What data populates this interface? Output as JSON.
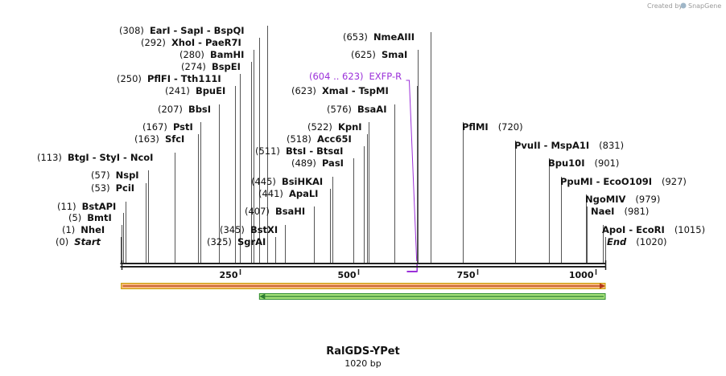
{
  "credit": {
    "text": "Created by",
    "brand": "SnapGene"
  },
  "sequence": {
    "name": "RalGDS-YPet",
    "length_label": "1020 bp",
    "length": 1020
  },
  "ruler": {
    "ticks": [
      250,
      500,
      750,
      1000
    ]
  },
  "primer_site": {
    "range": "(604 .. 623)",
    "name": "EXFP-R",
    "start": 604,
    "end": 623,
    "color": "#9b30d9"
  },
  "features": [
    {
      "name": "orf-top",
      "start": 1,
      "end": 1020,
      "direction": "forward",
      "fill": "#f7b87a",
      "stroke": "#c8a000",
      "arrow": "#b33a1a"
    },
    {
      "name": "orf-bottom",
      "start": 292,
      "end": 1020,
      "direction": "reverse",
      "fill": "#a6e27a",
      "stroke": "#2e8b2e",
      "arrow": "#2e7d32"
    }
  ],
  "sites": [
    {
      "pos": "(0)",
      "pos_n": 0,
      "label": "Start",
      "italic": true
    },
    {
      "pos": "(1)",
      "pos_n": 1,
      "label": "NheI"
    },
    {
      "pos": "(5)",
      "pos_n": 5,
      "label": "BmtI"
    },
    {
      "pos": "(11)",
      "pos_n": 11,
      "label": "BstAPI"
    },
    {
      "pos": "(53)",
      "pos_n": 53,
      "label": "PciI"
    },
    {
      "pos": "(57)",
      "pos_n": 57,
      "label": "NspI"
    },
    {
      "pos": "(113)",
      "pos_n": 113,
      "label": "BtgI  - StyI  - NcoI"
    },
    {
      "pos": "(163)",
      "pos_n": 163,
      "label": "SfcI"
    },
    {
      "pos": "(167)",
      "pos_n": 167,
      "label": "PstI"
    },
    {
      "pos": "(207)",
      "pos_n": 207,
      "label": "BbsI"
    },
    {
      "pos": "(241)",
      "pos_n": 241,
      "label": "BpuEI"
    },
    {
      "pos": "(250)",
      "pos_n": 250,
      "label": "PflFI  - Tth111I"
    },
    {
      "pos": "(274)",
      "pos_n": 274,
      "label": "BspEI"
    },
    {
      "pos": "(280)",
      "pos_n": 280,
      "label": "BamHI"
    },
    {
      "pos": "(292)",
      "pos_n": 292,
      "label": "XhoI  - PaeR7I"
    },
    {
      "pos": "(308)",
      "pos_n": 308,
      "label": "EarI  - SapI  - BspQI"
    },
    {
      "pos": "(325)",
      "pos_n": 325,
      "label": "SgrAI"
    },
    {
      "pos": "(345)",
      "pos_n": 345,
      "label": "BstXI"
    },
    {
      "pos": "(407)",
      "pos_n": 407,
      "label": "BsaHI"
    },
    {
      "pos": "(441)",
      "pos_n": 441,
      "label": "ApaLI"
    },
    {
      "pos": "(445)",
      "pos_n": 445,
      "label": "BsiHKAI"
    },
    {
      "pos": "(489)",
      "pos_n": 489,
      "label": "PasI"
    },
    {
      "pos": "(511)",
      "pos_n": 511,
      "label": "BtsI  - BtsαI"
    },
    {
      "pos": "(518)",
      "pos_n": 518,
      "label": "Acc65I"
    },
    {
      "pos": "(522)",
      "pos_n": 522,
      "label": "KpnI"
    },
    {
      "pos": "(576)",
      "pos_n": 576,
      "label": "BsaAI"
    },
    {
      "pos": "(623)",
      "pos_n": 623,
      "label": "XmaI  - TspMI"
    },
    {
      "pos": "(625)",
      "pos_n": 625,
      "label": "SmaI"
    },
    {
      "pos": "(653)",
      "pos_n": 653,
      "label": "NmeAIII"
    },
    {
      "pos": "(720)",
      "pos_n": 720,
      "label": "PflMI"
    },
    {
      "pos": "(831)",
      "pos_n": 831,
      "label": "PvuII  - MspA1I"
    },
    {
      "pos": "(901)",
      "pos_n": 901,
      "label": "Bpu10I"
    },
    {
      "pos": "(927)",
      "pos_n": 927,
      "label": "PpuMI  - EcoO109I"
    },
    {
      "pos": "(979)",
      "pos_n": 979,
      "label": "NgoMIV"
    },
    {
      "pos": "(981)",
      "pos_n": 981,
      "label": "NaeI"
    },
    {
      "pos": "(1015)",
      "pos_n": 1015,
      "label": "ApoI  - EcoRI"
    },
    {
      "pos": "(1020)",
      "pos_n": 1020,
      "label": "End",
      "italic": true
    }
  ]
}
